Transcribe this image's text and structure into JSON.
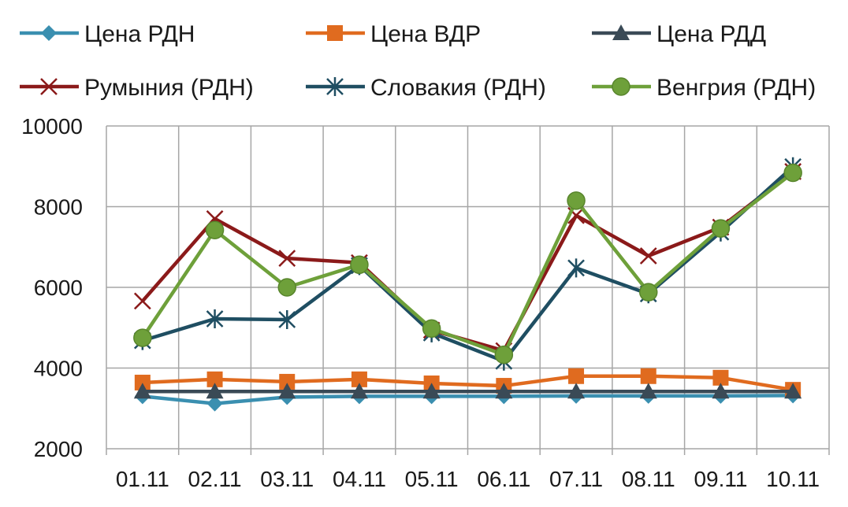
{
  "chart_data": {
    "type": "line",
    "categories": [
      "01.11",
      "02.11",
      "03.11",
      "04.11",
      "05.11",
      "06.11",
      "07.11",
      "08.11",
      "09.11",
      "10.11"
    ],
    "ylim": [
      2000,
      10000
    ],
    "yticks": [
      2000,
      4000,
      6000,
      8000,
      10000
    ],
    "grid": true,
    "legend_position": "top",
    "series": [
      {
        "name": "Цена РДН",
        "color": "#3a8fb0",
        "marker": "diamond",
        "values": [
          3300,
          3120,
          3280,
          3300,
          3300,
          3300,
          3310,
          3310,
          3310,
          3320
        ]
      },
      {
        "name": "Цена ВДР",
        "color": "#e06b1f",
        "marker": "square",
        "values": [
          3640,
          3720,
          3660,
          3720,
          3620,
          3560,
          3800,
          3800,
          3760,
          3460
        ]
      },
      {
        "name": "Цена РДД",
        "color": "#3a4a56",
        "marker": "triangle",
        "values": [
          3420,
          3420,
          3420,
          3420,
          3420,
          3420,
          3420,
          3420,
          3420,
          3420
        ]
      },
      {
        "name": "Румыния (РДН)",
        "color": "#8b1a1a",
        "marker": "x",
        "values": [
          5660,
          7700,
          6720,
          6610,
          4940,
          4430,
          7780,
          6780,
          7490,
          8870
        ]
      },
      {
        "name": "Словакия (РДН)",
        "color": "#1f4e62",
        "marker": "star",
        "values": [
          4680,
          5220,
          5200,
          6540,
          4870,
          4170,
          6480,
          5840,
          7370,
          8990
        ]
      },
      {
        "name": "Венгрия (РДН)",
        "color": "#6ea03a",
        "marker": "circle",
        "values": [
          4750,
          7420,
          6000,
          6560,
          4980,
          4330,
          8150,
          5880,
          7460,
          8840
        ]
      }
    ]
  }
}
